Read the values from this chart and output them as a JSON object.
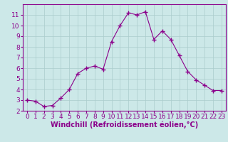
{
  "x": [
    0,
    1,
    2,
    3,
    4,
    5,
    6,
    7,
    8,
    9,
    10,
    11,
    12,
    13,
    14,
    15,
    16,
    17,
    18,
    19,
    20,
    21,
    22,
    23
  ],
  "y": [
    3.0,
    2.9,
    2.4,
    2.5,
    3.2,
    4.0,
    5.5,
    6.0,
    6.2,
    5.9,
    8.5,
    10.0,
    11.2,
    11.0,
    11.3,
    8.7,
    9.5,
    8.7,
    7.2,
    5.7,
    4.9,
    4.4,
    3.9,
    3.9
  ],
  "line_color": "#8B008B",
  "marker": "+",
  "marker_size": 4,
  "bg_color": "#cce8e8",
  "grid_color": "#aacccc",
  "xlabel": "Windchill (Refroidissement éolien,°C)",
  "xlabel_color": "#8B008B",
  "tick_color": "#8B008B",
  "spine_color": "#8B008B",
  "ylim": [
    2,
    12
  ],
  "xlim": [
    -0.5,
    23.5
  ],
  "yticks": [
    2,
    3,
    4,
    5,
    6,
    7,
    8,
    9,
    10,
    11
  ],
  "xticks": [
    0,
    1,
    2,
    3,
    4,
    5,
    6,
    7,
    8,
    9,
    10,
    11,
    12,
    13,
    14,
    15,
    16,
    17,
    18,
    19,
    20,
    21,
    22,
    23
  ],
  "xlabel_fontsize": 7,
  "tick_fontsize": 6.5
}
